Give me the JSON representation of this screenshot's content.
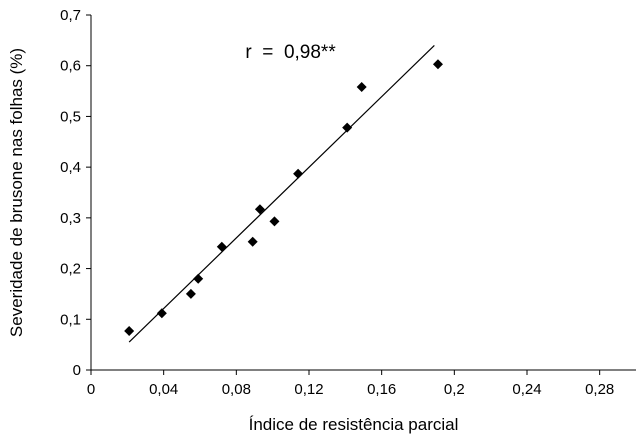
{
  "chart_data": {
    "type": "scatter",
    "xlabel": "Índice de resistência parcial",
    "ylabel": "Severidade de brusone nas folhas (%)",
    "xlim": [
      0,
      0.3
    ],
    "ylim": [
      0,
      0.7
    ],
    "x_ticks": [
      "0",
      "0,04",
      "0,08",
      "0,12",
      "0,16",
      "0,2",
      "0,24",
      "0,28"
    ],
    "x_tick_values": [
      0,
      0.04,
      0.08,
      0.12,
      0.16,
      0.2,
      0.24,
      0.28
    ],
    "y_ticks": [
      "0",
      "0,1",
      "0,2",
      "0,3",
      "0,4",
      "0,5",
      "0,6",
      "0,7"
    ],
    "y_tick_values": [
      0,
      0.1,
      0.2,
      0.3,
      0.4,
      0.5,
      0.6,
      0.7
    ],
    "grid": false,
    "legend": "none",
    "marker": "diamond",
    "marker_color": "#000000",
    "points": [
      {
        "x": 0.021,
        "y": 0.077
      },
      {
        "x": 0.039,
        "y": 0.112
      },
      {
        "x": 0.055,
        "y": 0.15
      },
      {
        "x": 0.059,
        "y": 0.18
      },
      {
        "x": 0.072,
        "y": 0.243
      },
      {
        "x": 0.089,
        "y": 0.253
      },
      {
        "x": 0.093,
        "y": 0.317
      },
      {
        "x": 0.101,
        "y": 0.293
      },
      {
        "x": 0.114,
        "y": 0.387
      },
      {
        "x": 0.141,
        "y": 0.478
      },
      {
        "x": 0.149,
        "y": 0.558
      },
      {
        "x": 0.191,
        "y": 0.603
      }
    ],
    "trendline": {
      "x": [
        0.021,
        0.189
      ],
      "y": [
        0.055,
        0.64
      ]
    },
    "annotation": {
      "text": "r  =  0,98**",
      "x": 0.085,
      "y": 0.615
    }
  }
}
